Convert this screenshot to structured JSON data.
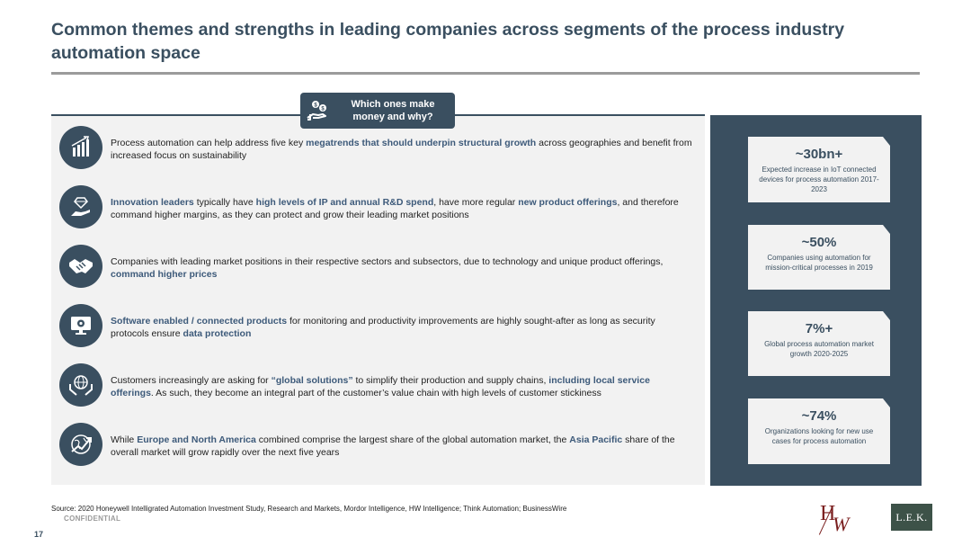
{
  "title": "Common themes and strengths in leading companies across segments of the process industry automation space",
  "callout": {
    "line1": "Which ones make",
    "line2": "money and why?",
    "icon": "hand-coins-icon"
  },
  "rows": [
    {
      "icon": "bar-chart-growth-icon",
      "segments": [
        {
          "t": "Process automation can help address five key ",
          "hl": false
        },
        {
          "t": "megatrends that should underpin structural growth",
          "hl": true
        },
        {
          "t": " across geographies and benefit from increased focus on sustainability",
          "hl": false
        }
      ]
    },
    {
      "icon": "hand-diamond-icon",
      "segments": [
        {
          "t": "Innovation leaders",
          "hl": true
        },
        {
          "t": " typically have ",
          "hl": false
        },
        {
          "t": "high levels of IP and annual R&D spend",
          "hl": true
        },
        {
          "t": ", have more regular ",
          "hl": false
        },
        {
          "t": "new product offerings",
          "hl": true
        },
        {
          "t": ", and therefore command higher margins, as they can protect and grow their leading market positions",
          "hl": false
        }
      ]
    },
    {
      "icon": "handshake-icon",
      "segments": [
        {
          "t": "Companies with leading market positions in their respective sectors and subsectors, due to technology and unique product offerings, ",
          "hl": false
        },
        {
          "t": "command higher prices",
          "hl": true
        }
      ]
    },
    {
      "icon": "monitor-gear-icon",
      "segments": [
        {
          "t": "Software enabled / connected products",
          "hl": true
        },
        {
          "t": " for monitoring and productivity improvements are highly sought-after as long as security protocols ensure ",
          "hl": false
        },
        {
          "t": "data protection",
          "hl": true
        }
      ]
    },
    {
      "icon": "hands-globe-icon",
      "segments": [
        {
          "t": "Customers increasingly are asking for ",
          "hl": false
        },
        {
          "t": "“global solutions”",
          "hl": true
        },
        {
          "t": " to simplify their production and supply chains, ",
          "hl": false
        },
        {
          "t": "including local service offerings",
          "hl": true
        },
        {
          "t": ". As such, they become an integral part of the customer’s value chain with high levels of customer stickiness",
          "hl": false
        }
      ]
    },
    {
      "icon": "globe-growth-arrow-icon",
      "segments": [
        {
          "t": "While ",
          "hl": false
        },
        {
          "t": "Europe and North America",
          "hl": true
        },
        {
          "t": " combined comprise the largest share of the global automation market, the ",
          "hl": false
        },
        {
          "t": "Asia Pacific",
          "hl": true
        },
        {
          "t": " share of the overall market will grow rapidly over the next five years",
          "hl": false
        }
      ]
    }
  ],
  "stats": [
    {
      "value": "~30bn+",
      "desc": "Expected increase in IoT connected devices for process automation 2017-2023"
    },
    {
      "value": "~50%",
      "desc": "Companies using automation for mission-critical processes in 2019"
    },
    {
      "value": "7%+",
      "desc": "Global process automation market growth 2020-2025"
    },
    {
      "value": "~74%",
      "desc": "Organizations looking for new use cases for process automation"
    }
  ],
  "footer": {
    "source": "Source:  2020 Honeywell Intelligrated Automation Investment Study, Research and Markets, Mordor Intelligence, HW Intelligence; Think Automation; BusinessWire",
    "confidential": "CONFIDENTIAL",
    "page": "17",
    "logo_hw": {
      "h": "H",
      "w": "W"
    },
    "logo_lek": "L.E.K."
  },
  "colors": {
    "navy": "#3a4f60",
    "highlight": "#3d5a7a",
    "panel": "#f2f2f2",
    "hw": "#7a1e1e",
    "lek": "#3d5248"
  }
}
